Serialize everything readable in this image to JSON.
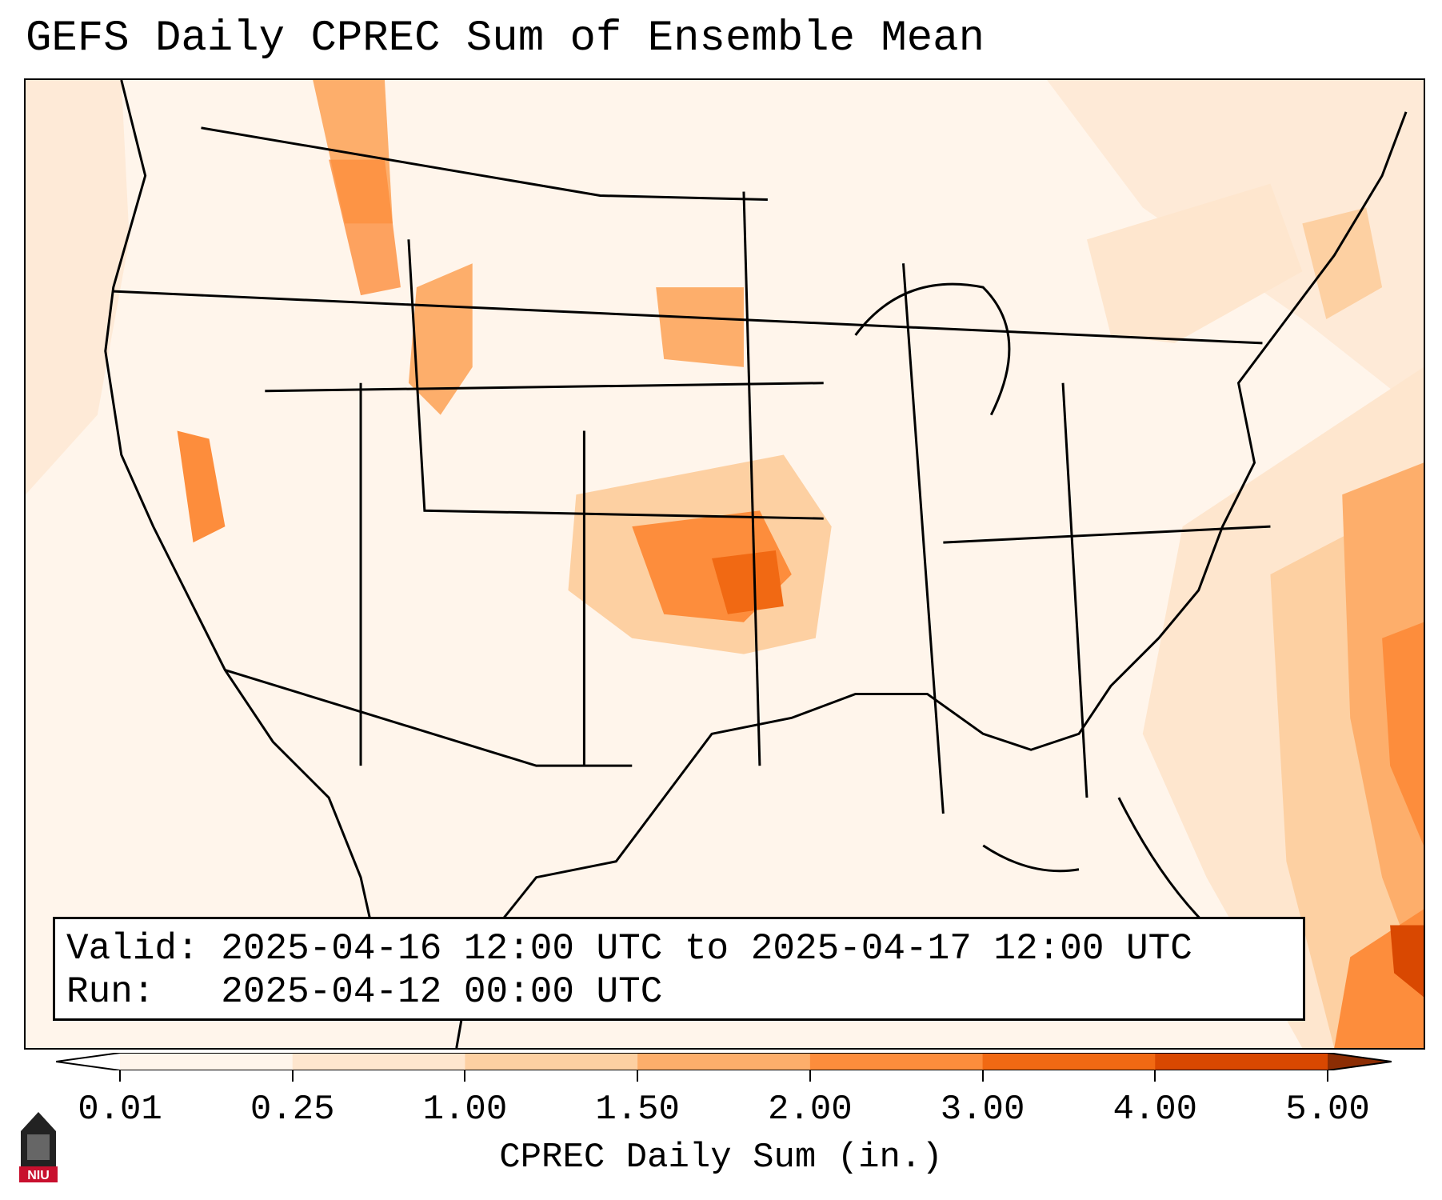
{
  "title": "GEFS Daily CPREC Sum of Ensemble Mean",
  "info": {
    "valid_label": "Valid:",
    "valid_value": "2025-04-16 12:00 UTC to 2025-04-17 12:00 UTC",
    "run_label": "Run:",
    "run_value": "2025-04-12 00:00 UTC"
  },
  "colorbar": {
    "label": "CPREC Daily Sum (in.)",
    "ticks": [
      "0.01",
      "0.25",
      "1.00",
      "1.50",
      "2.00",
      "3.00",
      "4.00",
      "5.00"
    ],
    "colors": [
      "#fff5eb",
      "#fee6ce",
      "#fdd0a2",
      "#fdae6b",
      "#fd8d3c",
      "#f16913",
      "#d94801",
      "#8c2d04"
    ]
  },
  "logo": {
    "text": "NIU",
    "color": "#c8102e"
  }
}
